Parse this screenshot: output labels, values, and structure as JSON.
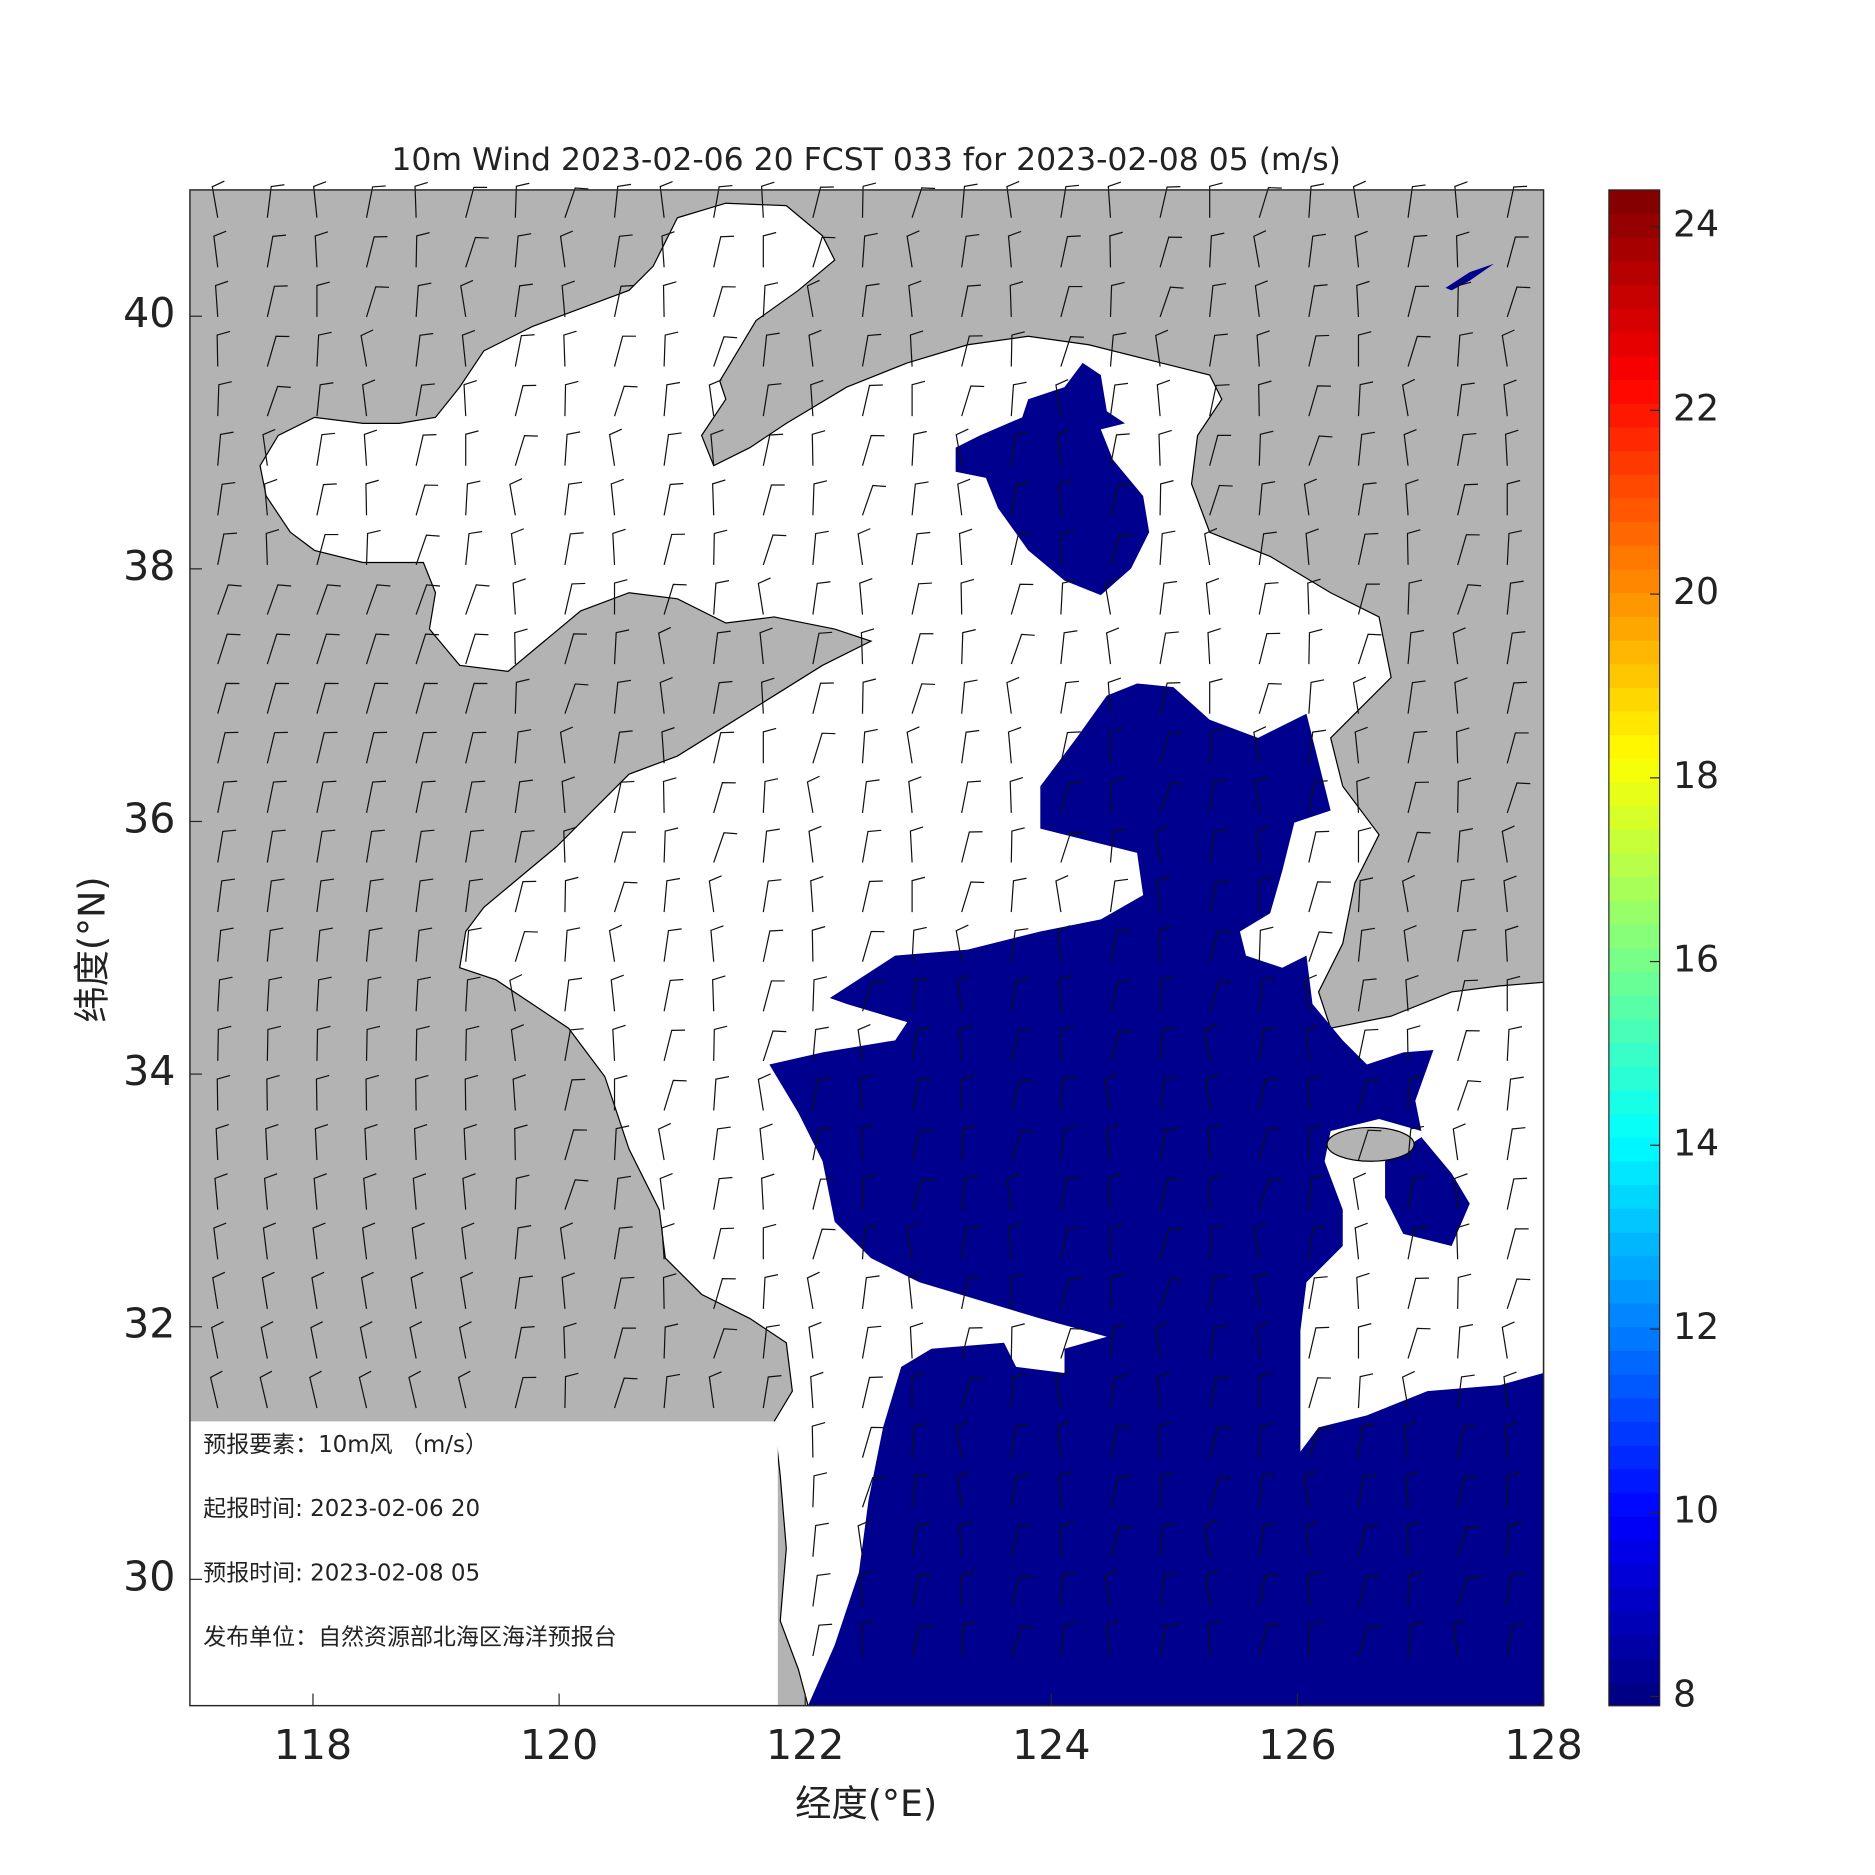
{
  "map": {
    "title": "10m Wind 2023-02-06 20 FCST 033 for 2023-02-08 05 (m/s)",
    "xlabel": "经度(°E)",
    "ylabel": "纬度(°N)",
    "xlim": [
      117,
      128
    ],
    "xticks": [
      118,
      120,
      122,
      124,
      126,
      128
    ],
    "ylim": [
      29,
      41
    ],
    "yticks": [
      30,
      32,
      34,
      36,
      38,
      40
    ],
    "colorbar": {
      "colormap": "jet",
      "lim": [
        7.9,
        24.4
      ],
      "ticks": [
        8,
        10,
        12,
        14,
        16,
        18,
        20,
        22,
        24
      ]
    },
    "info_box": [
      "预报要素：10m风 （m/s）",
      "起报时间: 2023-02-06 20",
      "预报时间: 2023-02-08 05",
      "发布单位：自然资源部北海区海洋预报台"
    ]
  }
}
